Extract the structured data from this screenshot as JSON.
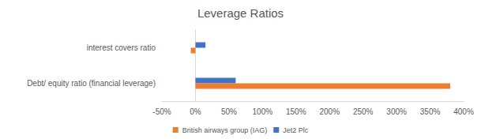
{
  "chart_data": {
    "type": "bar",
    "title": "Leverage Ratios",
    "orientation": "horizontal",
    "categories": [
      "Debt/ equity ratio (financial leverage)",
      "interest covers ratio"
    ],
    "series": [
      {
        "name": "Jet2 Plc",
        "color": "#4472c4",
        "values": [
          60,
          15
        ]
      },
      {
        "name": "British airways group (IAG)",
        "color": "#ed7d31",
        "values": [
          380,
          -7
        ]
      }
    ],
    "xlim": [
      -50,
      400
    ],
    "xticks": [
      {
        "value": -50,
        "label": "-50%"
      },
      {
        "value": 0,
        "label": "0%"
      },
      {
        "value": 50,
        "label": "50%"
      },
      {
        "value": 100,
        "label": "100%"
      },
      {
        "value": 150,
        "label": "150%"
      },
      {
        "value": 200,
        "label": "200%"
      },
      {
        "value": 250,
        "label": "250%"
      },
      {
        "value": 300,
        "label": "300%"
      },
      {
        "value": 350,
        "label": "350%"
      },
      {
        "value": 400,
        "label": "400%"
      }
    ],
    "grid": false,
    "legend": "bottom"
  }
}
